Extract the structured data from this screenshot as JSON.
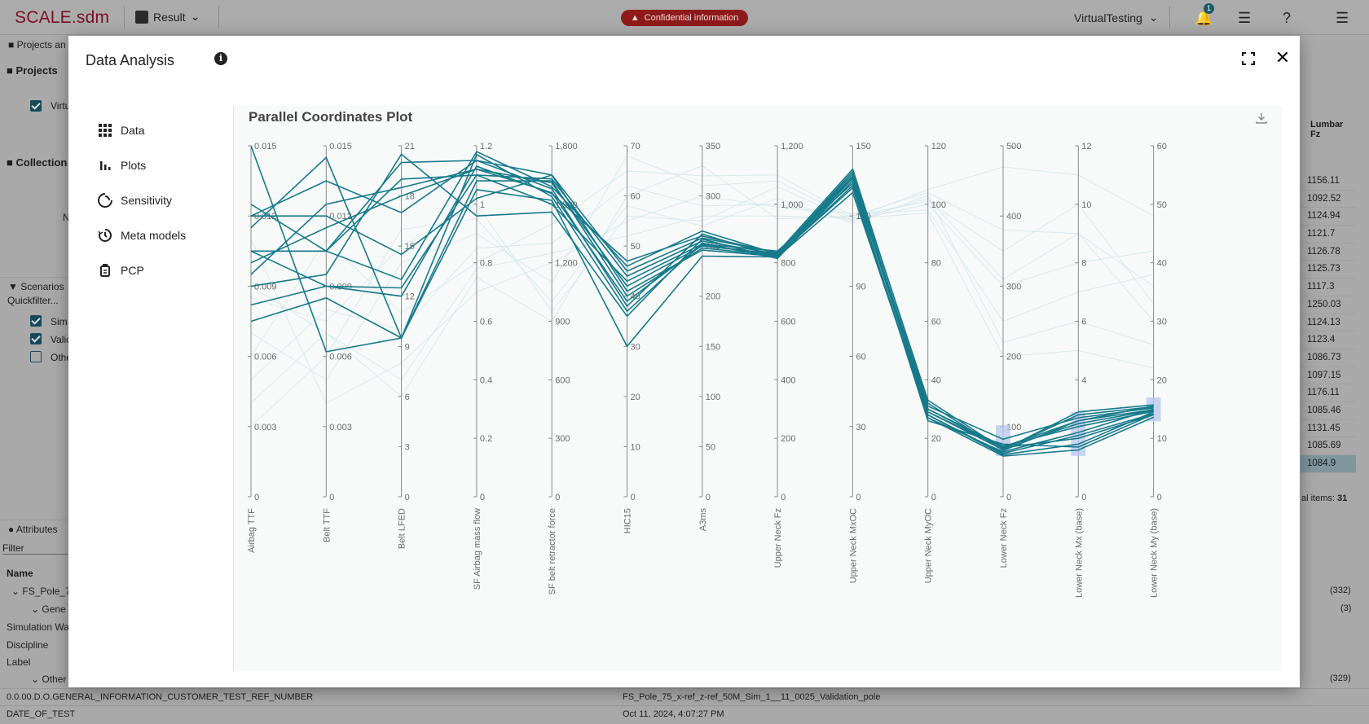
{
  "app": {
    "logo": "SCALE.sdm",
    "result_label": "Result",
    "confidential": "Confidential information",
    "user": "VirtualTesting",
    "notifications": "1"
  },
  "left_panel": {
    "projects_header": "Projects an",
    "projects_title": "Projects",
    "project_item": "Virtu",
    "collections_title": "Collection",
    "collections_n": "N",
    "scenarios_header": "Scenarios",
    "quickfilter": "Quickfilter...",
    "scenarios": [
      {
        "label": "Sim",
        "checked": true
      },
      {
        "label": "Valic",
        "checked": true
      },
      {
        "label": "Othe",
        "checked": false
      }
    ],
    "attributes_header": "Attributes",
    "filter_placeholder": "Filter",
    "name_col": "Name",
    "tree": [
      "FS_Pole_75",
      "Gene",
      "Simulation Wal",
      "Discipline",
      "Label",
      "Other"
    ]
  },
  "right_panel": {
    "column_header_1": "Lumbar",
    "column_header_2": "Fz",
    "values": [
      "1156.11",
      "1092.52",
      "1124.94",
      "1121.7",
      "1126.78",
      "1125.73",
      "1117.3",
      "1250.03",
      "1124.13",
      "1123.4",
      "1086.73",
      "1097.15",
      "1176.11",
      "1085.46",
      "1131.45",
      "1085.69",
      "1084.9"
    ],
    "total_items_label": "al items:",
    "total_items": "31",
    "count_1": "(332)",
    "count_2": "(3)",
    "count_3": "(329)"
  },
  "bottom_rows": [
    {
      "name": "0.0.00.D.O.GENERAL_INFORMATION_CUSTOMER_TEST_REF_NUMBER",
      "value": "FS_Pole_75_x-ref_z-ref_50M_Sim_1__11_0025_Validation_pole"
    },
    {
      "name": "DATE_OF_TEST",
      "value": "Oct 11, 2024, 4:07:27 PM"
    }
  ],
  "modal": {
    "title": "Data Analysis",
    "nav": [
      {
        "label": "Data",
        "icon": "grid-icon"
      },
      {
        "label": "Plots",
        "icon": "bar-chart-icon"
      },
      {
        "label": "Sensitivity",
        "icon": "sensitivity-icon"
      },
      {
        "label": "Meta models",
        "icon": "meta-model-icon"
      },
      {
        "label": "PCP",
        "icon": "pcp-icon"
      }
    ]
  },
  "chart_data": {
    "type": "parallel-coordinates",
    "title": "Parallel Coordinates Plot",
    "accent_color": "#167a8b",
    "faded_color": "#cfe6ea",
    "axes": [
      {
        "name": "Airbag TTF",
        "ticks": [
          "0",
          "0.003",
          "0.006",
          "0.009",
          "0.012",
          "0.015"
        ],
        "max": 0.015
      },
      {
        "name": "Belt TTF",
        "ticks": [
          "0",
          "0.003",
          "0.006",
          "0.009",
          "0.012",
          "0.015"
        ],
        "max": 0.015
      },
      {
        "name": "Belt LFED",
        "ticks": [
          "0",
          "3",
          "6",
          "9",
          "12",
          "15",
          "18",
          "21"
        ],
        "max": 21
      },
      {
        "name": "SF Airbag mass flow",
        "ticks": [
          "0",
          "0.2",
          "0.4",
          "0.6",
          "0.8",
          "1",
          "1.2"
        ],
        "max": 1.2
      },
      {
        "name": "SF belt retractor force",
        "ticks": [
          "0",
          "300",
          "600",
          "900",
          "1,200",
          "1,500",
          "1,800"
        ],
        "max": 1800
      },
      {
        "name": "HIC15",
        "ticks": [
          "0",
          "10",
          "20",
          "30",
          "40",
          "50",
          "60",
          "70"
        ],
        "max": 70
      },
      {
        "name": "A3ms",
        "ticks": [
          "0",
          "50",
          "100",
          "150",
          "200",
          "250",
          "300",
          "350"
        ],
        "max": 350
      },
      {
        "name": "Upper Neck Fz",
        "ticks": [
          "0",
          "200",
          "400",
          "600",
          "800",
          "1,000",
          "1,200"
        ],
        "max": 1200
      },
      {
        "name": "Upper Neck MxOC",
        "ticks": [
          "0",
          "30",
          "60",
          "90",
          "120",
          "150"
        ],
        "max": 150
      },
      {
        "name": "Upper Neck MyOC",
        "ticks": [
          "0",
          "20",
          "40",
          "60",
          "80",
          "100",
          "120"
        ],
        "max": 120
      },
      {
        "name": "Lower Neck Fz",
        "ticks": [
          "0",
          "100",
          "200",
          "300",
          "400",
          "500"
        ],
        "max": 500
      },
      {
        "name": "Lower Neck Mx (base)",
        "ticks": [
          "0",
          "4",
          "6",
          "8",
          "10",
          "12"
        ],
        "tick_values": [
          0,
          4,
          6,
          8,
          10,
          12
        ],
        "max": 12
      },
      {
        "name": "Lower Neck My (base)",
        "ticks": [
          "0",
          "10",
          "20",
          "30",
          "40",
          "50",
          "60"
        ],
        "max": 60
      }
    ],
    "brushes": [
      {
        "axis": 10,
        "from": 58,
        "to": 102
      },
      {
        "axis": 11,
        "from": 1.4,
        "to": 2.9
      },
      {
        "axis": 12,
        "from": 12.9,
        "to": 17
      }
    ],
    "highlighted": [
      [
        0.0105,
        0.0105,
        19,
        1.1,
        1630,
        44,
        255,
        830,
        138,
        30,
        70,
        2.5,
        14.8
      ],
      [
        0.012,
        0.0135,
        17,
        1.15,
        1580,
        38,
        262,
        820,
        136,
        28,
        62,
        2.1,
        14.2
      ],
      [
        0.0105,
        0.009,
        12.5,
        1.1,
        1500,
        43,
        252,
        840,
        134,
        26,
        75,
        1.7,
        14.1
      ],
      [
        0.01,
        0.0115,
        18,
        1.12,
        1610,
        42,
        250,
        830,
        137,
        31,
        82,
        2.7,
        15.2
      ],
      [
        0.0075,
        0.0085,
        9.5,
        1.05,
        1520,
        30,
        240,
        820,
        130,
        28,
        60,
        1.8,
        14.5
      ],
      [
        0.0115,
        0.0145,
        9.5,
        1.08,
        1620,
        40,
        248,
        825,
        132,
        27,
        64,
        2.2,
        15.0
      ],
      [
        0.0105,
        0.0105,
        13,
        1.18,
        1590,
        46,
        265,
        830,
        139,
        33,
        68,
        2.8,
        15.4
      ],
      [
        0.0125,
        0.0105,
        20,
        1.15,
        1650,
        45,
        258,
        835,
        140,
        32,
        66,
        2.6,
        14.9
      ],
      [
        0.015,
        0.0062,
        9.5,
        1.17,
        1540,
        37,
        253,
        815,
        137,
        29,
        70,
        2.0,
        14.0
      ],
      [
        0.009,
        0.0095,
        20.5,
        0.96,
        1460,
        36,
        257,
        815,
        135,
        30,
        71,
        2.6,
        15.5
      ],
      [
        0.012,
        0.012,
        14.5,
        1.02,
        1650,
        41,
        246,
        822,
        133,
        27,
        58,
        1.6,
        13.6
      ],
      [
        0.0095,
        0.0125,
        18.5,
        1.12,
        1560,
        39,
        251,
        828,
        136,
        30,
        72,
        2.4,
        14.6
      ],
      [
        0.0082,
        0.009,
        12,
        1.13,
        1555,
        47,
        260,
        833,
        138,
        29,
        67,
        2.9,
        15.7
      ]
    ],
    "faded": [
      [
        0.004,
        0.007,
        6,
        0.75,
        900,
        60,
        330,
        950,
        120,
        104,
        380,
        9,
        36
      ],
      [
        0.007,
        0.005,
        14,
        0.9,
        1100,
        68,
        310,
        1080,
        119,
        105,
        470,
        11,
        48
      ],
      [
        0.005,
        0.008,
        10,
        0.85,
        1300,
        62,
        290,
        1000,
        118,
        100,
        300,
        8,
        42
      ],
      [
        0.011,
        0.004,
        8,
        0.7,
        1200,
        55,
        300,
        990,
        121,
        98,
        250,
        7,
        38
      ],
      [
        0.003,
        0.006,
        16,
        0.95,
        1000,
        58,
        270,
        1020,
        117,
        103,
        220,
        6,
        26
      ],
      [
        0.006,
        0.011,
        11,
        0.8,
        1400,
        65,
        320,
        1100,
        120,
        101,
        350,
        10,
        33
      ],
      [
        0.009,
        0.007,
        7,
        0.78,
        1250,
        52,
        280,
        960,
        119,
        97,
        200,
        5,
        22
      ],
      [
        0.0085,
        0.0075,
        15,
        1.0,
        950,
        56,
        275,
        1060,
        118,
        102,
        310,
        9,
        30
      ]
    ]
  }
}
